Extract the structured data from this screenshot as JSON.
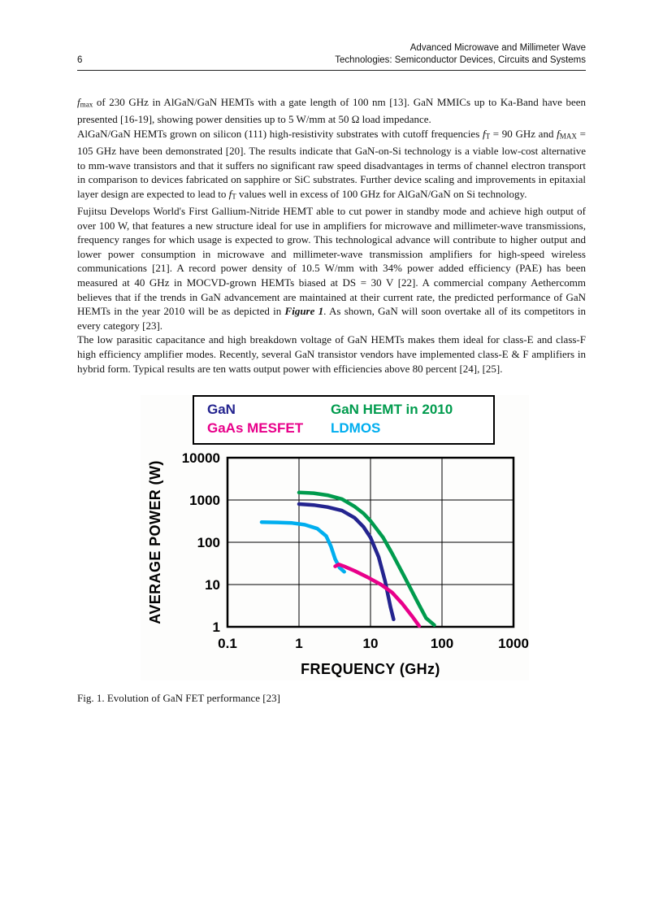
{
  "header": {
    "line1": "Advanced Microwave and Millimeter Wave",
    "page_number": "6",
    "line2": "Technologies: Semiconductor Devices, Circuits and Systems"
  },
  "body": {
    "paragraphs": [
      {
        "segments": [
          {
            "t": "f",
            "s": "i"
          },
          {
            "t": "max",
            "s": "sub"
          },
          {
            "t": " of 230 GHz in AlGaN/GaN HEMTs with a gate length of 100 nm [13]. GaN MMICs up to Ka-Band have been presented [16-19], showing power densities up to 5 W/mm at 50 Ω load impedance."
          }
        ]
      },
      {
        "segments": [
          {
            "t": "AlGaN/GaN HEMTs grown on silicon (111) high-resistivity substrates with cutoff frequencies "
          },
          {
            "t": "f",
            "s": "i"
          },
          {
            "t": "T",
            "s": "sub"
          },
          {
            "t": " = 90 GHz and "
          },
          {
            "t": "f",
            "s": "i"
          },
          {
            "t": "MAX",
            "s": "sub"
          },
          {
            "t": " = 105 GHz have been demonstrated [20]. The results indicate that GaN-on-Si technology is a viable low-cost alternative to mm-wave transistors and that it suffers no significant raw speed disadvantages in terms of channel electron transport in comparison to devices fabricated on sapphire or SiC substrates. Further device scaling and improvements in epitaxial layer design are expected to lead to "
          },
          {
            "t": "f",
            "s": "i"
          },
          {
            "t": "T",
            "s": "sub"
          },
          {
            "t": " values well in excess of 100 GHz for AlGaN/GaN on Si technology."
          }
        ]
      },
      {
        "segments": [
          {
            "t": "Fujitsu Develops World's First Gallium-Nitride HEMT able to cut power in standby mode and achieve high output of over 100 W, that features a new structure ideal for use in amplifiers for microwave and millimeter-wave transmissions, frequency ranges for which usage is expected to grow. This technological advance will contribute to higher output and lower power consumption in microwave and millimeter-wave transmission amplifiers for high-speed wireless communications [21]. A record power density of 10.5 W/mm with 34% power added efficiency (PAE) has been measured at 40 GHz in MOCVD-grown HEMTs biased at DS = 30 V [22]. A commercial company Aethercomm believes that if the trends in GaN advancement are maintained at their current rate, the predicted performance of GaN HEMTs in the year 2010 will be as depicted in "
          },
          {
            "t": "Figure 1",
            "s": "bi"
          },
          {
            "t": ". As shown, GaN will soon overtake all of its competitors in every category [23]."
          }
        ]
      },
      {
        "segments": [
          {
            "t": "The low parasitic capacitance and high breakdown voltage of GaN HEMTs makes them ideal for class-E and class-F high efficiency amplifier modes. Recently, several GaN transistor vendors have implemented class-E & F amplifiers in hybrid form. Typical results are ten watts output power with efficiencies above 80 percent [24], [25]."
          }
        ]
      }
    ]
  },
  "figure": {
    "caption": "Fig. 1. Evolution of GaN FET performance [23]",
    "legend": {
      "items": [
        {
          "label": "GaN",
          "color": "#24248f"
        },
        {
          "label": "GaN HEMT in 2010",
          "color": "#009b4d"
        },
        {
          "label": "GaAs MESFET",
          "color": "#e8008a"
        },
        {
          "label": "LDMOS",
          "color": "#00aeef"
        }
      ]
    }
  },
  "chart_data": {
    "type": "line",
    "title": "",
    "xlabel": "FREQUENCY (GHz)",
    "ylabel": "AVERAGE POWER (W)",
    "x_scale": "log",
    "y_scale": "log",
    "xlim": [
      0.1,
      1000
    ],
    "ylim": [
      1,
      10000
    ],
    "x_ticks": [
      0.1,
      1,
      10,
      100,
      1000
    ],
    "y_ticks": [
      1,
      10,
      100,
      1000,
      10000
    ],
    "grid": true,
    "legend_position": "top",
    "series": [
      {
        "name": "LDMOS",
        "color": "#00aeef",
        "points": [
          [
            0.3,
            300
          ],
          [
            0.5,
            295
          ],
          [
            0.8,
            285
          ],
          [
            1.2,
            260
          ],
          [
            1.8,
            210
          ],
          [
            2.4,
            140
          ],
          [
            2.8,
            80
          ],
          [
            3.2,
            40
          ],
          [
            3.7,
            25
          ],
          [
            4.3,
            20
          ]
        ]
      },
      {
        "name": "GaN HEMT in 2010",
        "color": "#009b4d",
        "points": [
          [
            1,
            1500
          ],
          [
            1.6,
            1450
          ],
          [
            2.5,
            1300
          ],
          [
            4,
            1050
          ],
          [
            6,
            700
          ],
          [
            8,
            480
          ],
          [
            10,
            320
          ],
          [
            15,
            130
          ],
          [
            20,
            55
          ],
          [
            30,
            15
          ],
          [
            45,
            4
          ],
          [
            60,
            1.6
          ],
          [
            78,
            1.1
          ]
        ]
      },
      {
        "name": "GaN",
        "color": "#24248f",
        "points": [
          [
            1,
            800
          ],
          [
            1.6,
            760
          ],
          [
            2.5,
            680
          ],
          [
            4,
            560
          ],
          [
            6,
            380
          ],
          [
            8,
            230
          ],
          [
            10,
            130
          ],
          [
            13,
            45
          ],
          [
            16,
            12
          ],
          [
            19,
            3
          ],
          [
            21,
            1.5
          ]
        ]
      },
      {
        "name": "GaAs MESFET",
        "color": "#e8008a",
        "points": [
          [
            3.2,
            27
          ],
          [
            3.6,
            30
          ],
          [
            4.5,
            26
          ],
          [
            6,
            21
          ],
          [
            9,
            15
          ],
          [
            14,
            10
          ],
          [
            20,
            6.5
          ],
          [
            28,
            3.5
          ],
          [
            38,
            1.8
          ],
          [
            48,
            1.05
          ]
        ]
      }
    ]
  }
}
